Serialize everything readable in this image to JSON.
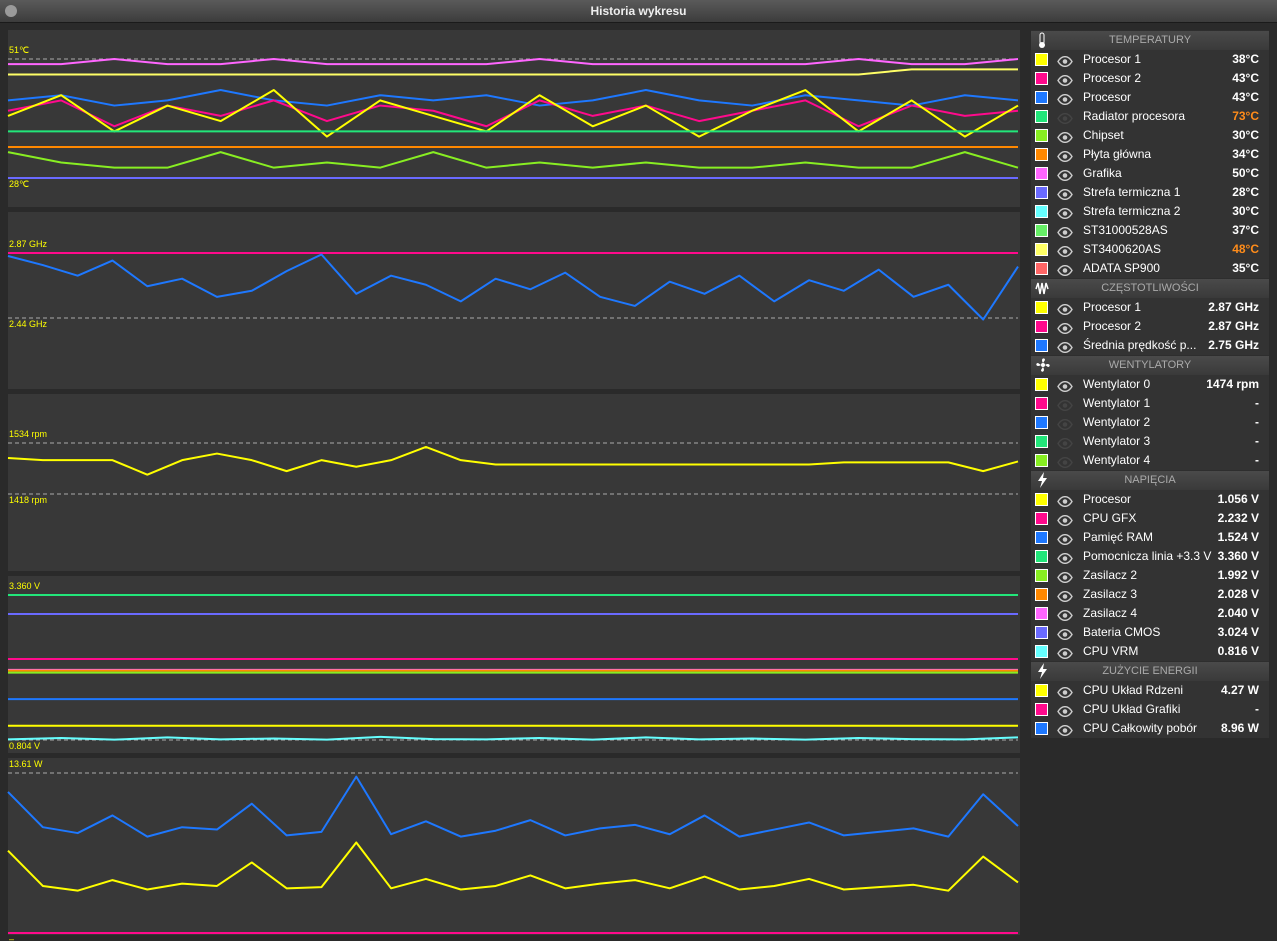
{
  "window": {
    "title": "Historia wykresu"
  },
  "chart_data": [
    {
      "type": "line",
      "ylim": [
        28,
        51
      ],
      "yticks": [
        {
          "value": 28,
          "label": "28℃"
        },
        {
          "value": 51,
          "label": "51℃"
        }
      ],
      "series": [
        {
          "color": "#ff66ff",
          "values": [
            50,
            50,
            51,
            50,
            50,
            51,
            50,
            50,
            50,
            50,
            51,
            50,
            50,
            50,
            50,
            50,
            51,
            50,
            50,
            51
          ]
        },
        {
          "color": "#ffff66",
          "values": [
            48,
            48,
            48,
            48,
            48,
            48,
            48,
            48,
            48,
            48,
            48,
            48,
            48,
            48,
            48,
            48,
            48,
            49,
            49,
            49
          ]
        },
        {
          "color": "#1e78ff",
          "values": [
            43,
            44,
            42,
            43,
            45,
            43,
            42,
            44,
            43,
            44,
            42,
            43,
            45,
            43,
            42,
            44,
            43,
            42,
            44,
            43
          ]
        },
        {
          "color": "#ff0a8c",
          "values": [
            41,
            43,
            38,
            42,
            40,
            43,
            39,
            42,
            41,
            38,
            43,
            40,
            42,
            39,
            41,
            43,
            38,
            42,
            40,
            41
          ]
        },
        {
          "color": "#ffff00",
          "values": [
            40,
            44,
            37,
            42,
            39,
            45,
            36,
            43,
            40,
            37,
            44,
            38,
            42,
            36,
            41,
            45,
            37,
            43,
            36,
            42
          ]
        },
        {
          "color": "#22e67a",
          "values": [
            37,
            37
          ]
        },
        {
          "color": "#ff8800",
          "values": [
            34,
            34
          ]
        },
        {
          "color": "#88ee22",
          "values": [
            33,
            31,
            30,
            30,
            33,
            30,
            31,
            30,
            33,
            30,
            31,
            30,
            31,
            30,
            30,
            31,
            30,
            30,
            33,
            30
          ]
        },
        {
          "color": "#6a6aff",
          "values": [
            28,
            28
          ]
        }
      ]
    },
    {
      "type": "line",
      "ylim": [
        2.44,
        2.87
      ],
      "yticks": [
        {
          "value": 2.44,
          "label": "2.44 GHz"
        },
        {
          "value": 2.87,
          "label": "2.87 GHz"
        }
      ],
      "series": [
        {
          "color": "#ff0a8c",
          "values": [
            2.87,
            2.87
          ]
        },
        {
          "color": "#1e78ff",
          "values": [
            2.85,
            2.79,
            2.72,
            2.82,
            2.65,
            2.7,
            2.58,
            2.62,
            2.75,
            2.86,
            2.6,
            2.72,
            2.66,
            2.55,
            2.7,
            2.63,
            2.74,
            2.58,
            2.52,
            2.68,
            2.6,
            2.72,
            2.55,
            2.69,
            2.62,
            2.76,
            2.58,
            2.66,
            2.43,
            2.78
          ]
        }
      ]
    },
    {
      "type": "line",
      "ylim": [
        1418,
        1534
      ],
      "yticks": [
        {
          "value": 1418,
          "label": "1418 rpm"
        },
        {
          "value": 1534,
          "label": "1534 rpm"
        }
      ],
      "series": [
        {
          "color": "#ffff00",
          "values": [
            1500,
            1495,
            1495,
            1495,
            1462,
            1495,
            1510,
            1495,
            1470,
            1495,
            1480,
            1495,
            1525,
            1495,
            1485,
            1485,
            1485,
            1485,
            1485,
            1485,
            1485,
            1485,
            1485,
            1485,
            1490,
            1490,
            1490,
            1490,
            1470,
            1492
          ]
        }
      ]
    },
    {
      "type": "line",
      "ylim": [
        0.804,
        3.36
      ],
      "yticks": [
        {
          "value": 0.804,
          "label": "0.804 V"
        },
        {
          "value": 3.36,
          "label": "3.360 V"
        }
      ],
      "series": [
        {
          "color": "#22e67a",
          "values": [
            3.36,
            3.36
          ]
        },
        {
          "color": "#6a6aff",
          "values": [
            3.024,
            3.024
          ]
        },
        {
          "color": "#ff0a8c",
          "values": [
            2.232,
            2.232
          ]
        },
        {
          "color": "#ff66ff",
          "values": [
            2.04,
            2.04
          ]
        },
        {
          "color": "#ff8800",
          "values": [
            2.028,
            2.028
          ]
        },
        {
          "color": "#88ee22",
          "values": [
            1.992,
            1.992
          ]
        },
        {
          "color": "#1e78ff",
          "values": [
            1.524,
            1.524
          ]
        },
        {
          "color": "#ffff00",
          "values": [
            1.056,
            1.056
          ]
        },
        {
          "color": "#66ffff",
          "values": [
            0.816,
            0.84,
            0.81,
            0.85,
            0.816,
            0.83,
            0.81,
            0.86,
            0.82,
            0.816,
            0.84,
            0.81,
            0.85,
            0.816,
            0.83,
            0.81,
            0.84,
            0.82,
            0.816,
            0.85
          ]
        }
      ]
    },
    {
      "type": "line",
      "ylim": [
        0,
        13.61
      ],
      "yticks": [
        {
          "value": 0,
          "label": "–"
        },
        {
          "value": 13.61,
          "label": "13.61 W"
        }
      ],
      "series": [
        {
          "color": "#1e78ff",
          "values": [
            12,
            9,
            8.5,
            10,
            8.2,
            9,
            8.8,
            11,
            8.3,
            8.6,
            13.3,
            8.4,
            9.5,
            8.2,
            8.7,
            9.6,
            8.3,
            8.9,
            9.2,
            8.4,
            10,
            8.2,
            8.8,
            9.4,
            8.3,
            8.6,
            8.9,
            8.2,
            11.8,
            9.1
          ]
        },
        {
          "color": "#ffff00",
          "values": [
            7,
            4,
            3.6,
            4.5,
            3.7,
            4.2,
            4,
            6,
            3.8,
            3.9,
            7.7,
            3.8,
            4.6,
            3.7,
            4,
            4.9,
            3.8,
            4.2,
            4.5,
            3.8,
            4.8,
            3.7,
            4,
            4.6,
            3.7,
            3.9,
            4.1,
            3.6,
            6.5,
            4.3
          ]
        },
        {
          "color": "#ff0a8c",
          "values": [
            0,
            0
          ]
        }
      ]
    }
  ],
  "sidebar": [
    {
      "title": "TEMPERATURY",
      "rows": [
        {
          "color": "#ffff00",
          "name": "Procesor 1",
          "value": "38°C"
        },
        {
          "color": "#ff0a8c",
          "name": "Procesor 2",
          "value": "43°C"
        },
        {
          "color": "#1e78ff",
          "name": "Procesor",
          "value": "43°C"
        },
        {
          "color": "#22e67a",
          "name": "Radiator procesora",
          "value": "73°C",
          "warn": true,
          "visible": false
        },
        {
          "color": "#88ee22",
          "name": "Chipset",
          "value": "30°C"
        },
        {
          "color": "#ff8800",
          "name": "Płyta główna",
          "value": "34°C"
        },
        {
          "color": "#ff66ff",
          "name": "Grafika",
          "value": "50°C"
        },
        {
          "color": "#6a6aff",
          "name": "Strefa termiczna 1",
          "value": "28°C"
        },
        {
          "color": "#66ffff",
          "name": "Strefa termiczna 2",
          "value": "30°C"
        },
        {
          "color": "#66ee66",
          "name": "ST31000528AS",
          "value": "37°C"
        },
        {
          "color": "#ffff66",
          "name": "ST3400620AS",
          "value": "48°C",
          "warn": true
        },
        {
          "color": "#ff6666",
          "name": "ADATA SP900",
          "value": "35°C"
        }
      ]
    },
    {
      "title": "CZĘSTOTLIWOŚCI",
      "rows": [
        {
          "color": "#ffff00",
          "name": "Procesor 1",
          "value": "2.87 GHz"
        },
        {
          "color": "#ff0a8c",
          "name": "Procesor 2",
          "value": "2.87 GHz"
        },
        {
          "color": "#1e78ff",
          "name": "Średnia prędkość p...",
          "value": "2.75 GHz"
        }
      ]
    },
    {
      "title": "WENTYLATORY",
      "rows": [
        {
          "color": "#ffff00",
          "name": "Wentylator 0",
          "value": "1474 rpm"
        },
        {
          "color": "#ff0a8c",
          "name": "Wentylator 1",
          "value": "-",
          "visible": false
        },
        {
          "color": "#1e78ff",
          "name": "Wentylator 2",
          "value": "-",
          "visible": false
        },
        {
          "color": "#22e67a",
          "name": "Wentylator 3",
          "value": "-",
          "visible": false
        },
        {
          "color": "#88ee22",
          "name": "Wentylator 4",
          "value": "-",
          "visible": false
        }
      ]
    },
    {
      "title": "NAPIĘCIA",
      "rows": [
        {
          "color": "#ffff00",
          "name": "Procesor",
          "value": "1.056 V"
        },
        {
          "color": "#ff0a8c",
          "name": "CPU GFX",
          "value": "2.232 V"
        },
        {
          "color": "#1e78ff",
          "name": "Pamięć RAM",
          "value": "1.524 V"
        },
        {
          "color": "#22e67a",
          "name": "Pomocnicza linia +3.3 V",
          "value": "3.360 V"
        },
        {
          "color": "#88ee22",
          "name": "Zasilacz 2",
          "value": "1.992 V"
        },
        {
          "color": "#ff8800",
          "name": "Zasilacz 3",
          "value": "2.028 V"
        },
        {
          "color": "#ff66ff",
          "name": "Zasilacz 4",
          "value": "2.040 V"
        },
        {
          "color": "#6a6aff",
          "name": "Bateria CMOS",
          "value": "3.024 V"
        },
        {
          "color": "#66ffff",
          "name": "CPU VRM",
          "value": "0.816 V"
        }
      ]
    },
    {
      "title": "ZUŻYCIE ENERGII",
      "rows": [
        {
          "color": "#ffff00",
          "name": "CPU Układ Rdzeni",
          "value": "4.27 W"
        },
        {
          "color": "#ff0a8c",
          "name": "CPU Układ Grafiki",
          "value": "-"
        },
        {
          "color": "#1e78ff",
          "name": "CPU Całkowity pobór",
          "value": "8.96 W"
        }
      ]
    }
  ]
}
